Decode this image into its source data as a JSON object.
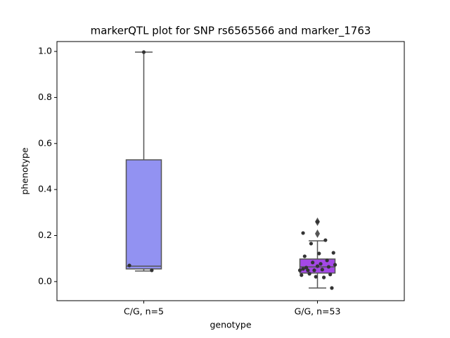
{
  "chart_data": {
    "type": "box",
    "title": "markerQTL plot for SNP rs6565566 and marker_1763",
    "x_label": "genotype",
    "y_label": "phenotype",
    "categories": [
      "C/G, n=5",
      "G/G, n=53"
    ],
    "ylim": [
      -0.083,
      1.043
    ],
    "yticks": [
      {
        "value": 0,
        "label": "0.0"
      },
      0.2,
      0.4,
      0.6,
      0.8,
      {
        "value": 1,
        "label": "1.0"
      }
    ],
    "boxes": [
      {
        "color": "#9292f2",
        "whisker_low": 0.046,
        "q1": 0.055,
        "median": 0.067,
        "q3": 0.529,
        "whisker_high": 0.997,
        "outliers": [],
        "points": [
          0.997,
          0.07,
          0.049
        ]
      },
      {
        "color": "#a448e6",
        "whisker_low": -0.028,
        "q1": 0.037,
        "median": 0.064,
        "q3": 0.098,
        "whisker_high": 0.177,
        "outliers": [
          0.26,
          0.208
        ],
        "points": [
          0.26,
          0.211,
          0.18,
          0.165,
          0.125,
          0.122,
          0.11,
          0.092,
          0.083,
          0.073,
          0.077,
          0.061,
          0.064,
          0.049,
          0.049,
          0.052,
          0.049,
          0.031,
          0.021,
          0.028,
          0.018,
          0.034,
          -0.028,
          0.067,
          0.055
        ]
      }
    ]
  }
}
